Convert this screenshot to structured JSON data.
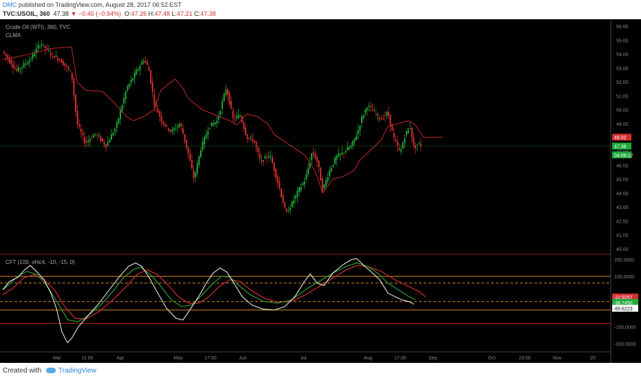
{
  "header": {
    "author": "DMC",
    "published": " published on TradingView.com, August 28, 2017 06:52 EST",
    "symbol": "TVC:USOIL, 360",
    "change": "▼ −0.45 (−0.94%)",
    "o_label": "O:",
    "o": "47.26",
    "h_label": "H:",
    "h": "47.48",
    "l_label": "L:",
    "l": "47.21",
    "c_label": "C:",
    "c": "47.38",
    "last": "47.38"
  },
  "footer": {
    "created_with": "Created with",
    "brand": "TradingView"
  },
  "colors": {
    "up": "#26a69a",
    "upGreen": "#1faa3a",
    "down": "#d32f2f",
    "clma": "#c62828",
    "cft": "#ffffff",
    "signal_green": "#2e9d2e",
    "signal_red": "#d32f2f",
    "band": "#d98a2b"
  },
  "chart_data": [
    {
      "type": "candlestick",
      "title": "Crude Oil (WTI), 360, TVC",
      "indicator": "CLMA",
      "y_ticks": [
        "56.00",
        "55.00",
        "54.00",
        "53.00",
        "52.00",
        "51.00",
        "50.00",
        "49.00",
        "48.00",
        "47.00",
        "46.00",
        "45.00",
        "44.00",
        "43.00",
        "42.00",
        "41.00",
        "40.00"
      ],
      "ylim": [
        39.8,
        56.3
      ],
      "price_labels": [
        {
          "text": "48.02",
          "value": 48.02,
          "color": "#d32f2f"
        },
        {
          "text": "47.38",
          "value": 47.38,
          "color": "#1faa3a"
        },
        {
          "text": "04:08:12",
          "value": 46.75,
          "color": "#1faa3a"
        }
      ],
      "close_series_key": [
        [
          0,
          54.2
        ],
        [
          20,
          52.8
        ],
        [
          40,
          53.6
        ],
        [
          55,
          54.8
        ],
        [
          70,
          54.0
        ],
        [
          85,
          53.5
        ],
        [
          100,
          52.6
        ],
        [
          108,
          49.0
        ],
        [
          120,
          47.6
        ],
        [
          135,
          48.3
        ],
        [
          150,
          47.4
        ],
        [
          165,
          48.8
        ],
        [
          180,
          51.5
        ],
        [
          195,
          52.8
        ],
        [
          205,
          53.6
        ],
        [
          212,
          53.0
        ],
        [
          220,
          50.5
        ],
        [
          232,
          49.1
        ],
        [
          245,
          48.4
        ],
        [
          258,
          49.0
        ],
        [
          270,
          46.8
        ],
        [
          278,
          45.0
        ],
        [
          288,
          47.2
        ],
        [
          300,
          48.8
        ],
        [
          312,
          49.2
        ],
        [
          325,
          51.6
        ],
        [
          335,
          49.3
        ],
        [
          345,
          49.6
        ],
        [
          355,
          48.0
        ],
        [
          365,
          47.8
        ],
        [
          375,
          46.2
        ],
        [
          388,
          46.8
        ],
        [
          400,
          44.8
        ],
        [
          412,
          42.5
        ],
        [
          420,
          43.2
        ],
        [
          430,
          44.2
        ],
        [
          440,
          45.0
        ],
        [
          450,
          47.0
        ],
        [
          458,
          46.2
        ],
        [
          465,
          44.2
        ],
        [
          475,
          45.6
        ],
        [
          485,
          46.6
        ],
        [
          497,
          47.0
        ],
        [
          507,
          47.4
        ],
        [
          516,
          48.4
        ],
        [
          522,
          49.4
        ],
        [
          530,
          50.3
        ],
        [
          540,
          49.8
        ],
        [
          550,
          49.3
        ],
        [
          560,
          49.8
        ],
        [
          568,
          48.0
        ],
        [
          578,
          46.9
        ],
        [
          585,
          48.2
        ],
        [
          592,
          48.8
        ],
        [
          598,
          47.2
        ],
        [
          604,
          47.6
        ],
        [
          610,
          47.38
        ]
      ],
      "clma_key": [
        [
          0,
          53.6
        ],
        [
          40,
          54.0
        ],
        [
          70,
          54.4
        ],
        [
          100,
          54.5
        ],
        [
          108,
          52.0
        ],
        [
          120,
          51.4
        ],
        [
          145,
          51.3
        ],
        [
          160,
          50.6
        ],
        [
          180,
          49.5
        ],
        [
          190,
          49.2
        ],
        [
          205,
          49.5
        ],
        [
          220,
          50.0
        ],
        [
          230,
          51.4
        ],
        [
          250,
          52.2
        ],
        [
          260,
          51.7
        ],
        [
          270,
          50.8
        ],
        [
          290,
          50.0
        ],
        [
          310,
          49.6
        ],
        [
          330,
          49.2
        ],
        [
          340,
          48.9
        ],
        [
          355,
          49.7
        ],
        [
          370,
          49.5
        ],
        [
          385,
          49.0
        ],
        [
          395,
          48.2
        ],
        [
          410,
          47.7
        ],
        [
          425,
          47.2
        ],
        [
          440,
          46.7
        ],
        [
          455,
          45.5
        ],
        [
          465,
          44.0
        ],
        [
          480,
          45.0
        ],
        [
          495,
          45.2
        ],
        [
          510,
          45.6
        ],
        [
          520,
          46.4
        ],
        [
          535,
          47.1
        ],
        [
          550,
          47.8
        ],
        [
          560,
          48.8
        ],
        [
          575,
          49.0
        ],
        [
          590,
          49.2
        ],
        [
          600,
          48.9
        ],
        [
          612,
          48.0
        ],
        [
          640,
          48.02
        ]
      ]
    },
    {
      "type": "line",
      "title": "CFT (100, ohlc4, -10, -15, 0)",
      "y_ticks": [
        "200.0000",
        "100.0000",
        "-200.0000",
        "-300.0000"
      ],
      "tick_values": [
        200,
        100,
        -200,
        -300
      ],
      "ylim": [
        -350,
        215
      ],
      "levels": [
        {
          "value": 100,
          "color": "#d98a2b",
          "style": "solid"
        },
        {
          "value": 60,
          "color": "#d98a2b",
          "style": "dashed"
        },
        {
          "value": -50,
          "color": "#d98a2b",
          "style": "dashed"
        },
        {
          "value": -100,
          "color": "#d98a2b",
          "style": "solid"
        },
        {
          "value": -180,
          "color": "#b71c1c",
          "style": "solid"
        }
      ],
      "value_labels": [
        {
          "text": "-22.9257",
          "value": -22.9257,
          "color": "#d32f2f"
        },
        {
          "text": "-38.7450",
          "value": -38.745,
          "color": "#1faa3a"
        },
        {
          "text": "-65.6223",
          "value": -65.6223,
          "color": "#ffffff"
        }
      ],
      "series": [
        {
          "key": "cft",
          "points": [
            [
              0,
              20
            ],
            [
              10,
              70
            ],
            [
              22,
              95
            ],
            [
              32,
              140
            ],
            [
              40,
              165
            ],
            [
              50,
              125
            ],
            [
              60,
              80
            ],
            [
              70,
              0
            ],
            [
              78,
              -90
            ],
            [
              86,
              -230
            ],
            [
              94,
              -295
            ],
            [
              100,
              -270
            ],
            [
              110,
              -200
            ],
            [
              125,
              -130
            ],
            [
              140,
              -60
            ],
            [
              155,
              20
            ],
            [
              170,
              100
            ],
            [
              183,
              160
            ],
            [
              193,
              180
            ],
            [
              202,
              160
            ],
            [
              212,
              100
            ],
            [
              224,
              10
            ],
            [
              238,
              -90
            ],
            [
              252,
              -150
            ],
            [
              262,
              -160
            ],
            [
              272,
              -100
            ],
            [
              285,
              -20
            ],
            [
              296,
              60
            ],
            [
              306,
              120
            ],
            [
              316,
              150
            ],
            [
              326,
              125
            ],
            [
              336,
              60
            ],
            [
              348,
              -20
            ],
            [
              362,
              -70
            ],
            [
              378,
              -95
            ],
            [
              395,
              -100
            ],
            [
              410,
              -80
            ],
            [
              425,
              -20
            ],
            [
              437,
              60
            ],
            [
              447,
              115
            ],
            [
              457,
              60
            ],
            [
              467,
              45
            ],
            [
              480,
              120
            ],
            [
              495,
              170
            ],
            [
              507,
              200
            ],
            [
              515,
              205
            ],
            [
              525,
              165
            ],
            [
              535,
              130
            ],
            [
              548,
              80
            ],
            [
              560,
              0
            ],
            [
              570,
              -20
            ],
            [
              580,
              -40
            ],
            [
              590,
              -50
            ],
            [
              598,
              -65.6
            ]
          ]
        },
        {
          "key": "signal_green",
          "points": [
            [
              0,
              20
            ],
            [
              10,
              55
            ],
            [
              22,
              100
            ],
            [
              35,
              130
            ],
            [
              50,
              110
            ],
            [
              65,
              40
            ],
            [
              80,
              -60
            ],
            [
              95,
              -160
            ],
            [
              110,
              -170
            ],
            [
              125,
              -130
            ],
            [
              145,
              -60
            ],
            [
              160,
              10
            ],
            [
              175,
              90
            ],
            [
              190,
              140
            ],
            [
              200,
              155
            ],
            [
              215,
              110
            ],
            [
              230,
              40
            ],
            [
              245,
              -40
            ],
            [
              260,
              -80
            ],
            [
              275,
              -70
            ],
            [
              290,
              -10
            ],
            [
              305,
              55
            ],
            [
              318,
              100
            ],
            [
              330,
              95
            ],
            [
              345,
              40
            ],
            [
              360,
              -10
            ],
            [
              380,
              -50
            ],
            [
              400,
              -60
            ],
            [
              420,
              -40
            ],
            [
              440,
              20
            ],
            [
              460,
              70
            ],
            [
              480,
              120
            ],
            [
              500,
              160
            ],
            [
              515,
              180
            ],
            [
              530,
              160
            ],
            [
              545,
              120
            ],
            [
              560,
              60
            ],
            [
              575,
              20
            ],
            [
              590,
              -20
            ],
            [
              600,
              -38.7
            ]
          ]
        },
        {
          "key": "signal_red",
          "points": [
            [
              0,
              -10
            ],
            [
              15,
              30
            ],
            [
              30,
              90
            ],
            [
              45,
              110
            ],
            [
              60,
              80
            ],
            [
              75,
              20
            ],
            [
              90,
              -80
            ],
            [
              105,
              -150
            ],
            [
              120,
              -155
            ],
            [
              140,
              -110
            ],
            [
              160,
              -40
            ],
            [
              180,
              40
            ],
            [
              195,
              110
            ],
            [
              210,
              140
            ],
            [
              225,
              110
            ],
            [
              240,
              50
            ],
            [
              255,
              -20
            ],
            [
              270,
              -60
            ],
            [
              285,
              -60
            ],
            [
              300,
              -20
            ],
            [
              315,
              40
            ],
            [
              330,
              80
            ],
            [
              345,
              70
            ],
            [
              360,
              20
            ],
            [
              380,
              -30
            ],
            [
              400,
              -55
            ],
            [
              420,
              -50
            ],
            [
              440,
              -10
            ],
            [
              460,
              40
            ],
            [
              480,
              90
            ],
            [
              500,
              140
            ],
            [
              515,
              165
            ],
            [
              530,
              160
            ],
            [
              550,
              130
            ],
            [
              570,
              80
            ],
            [
              590,
              40
            ],
            [
              605,
              10
            ],
            [
              615,
              -22.9
            ]
          ]
        }
      ]
    }
  ],
  "x_axis": {
    "labels": [
      "Mar",
      "11:00",
      "Apr",
      "May",
      "17:00",
      "Jun",
      "Jul",
      "Aug",
      "17:00",
      "Sep",
      "Oct",
      "23:00",
      "Nov",
      "20"
    ],
    "label_pos": [
      83,
      127,
      175,
      259,
      306,
      353,
      441,
      535,
      582,
      629,
      715,
      763,
      810,
      862
    ]
  }
}
